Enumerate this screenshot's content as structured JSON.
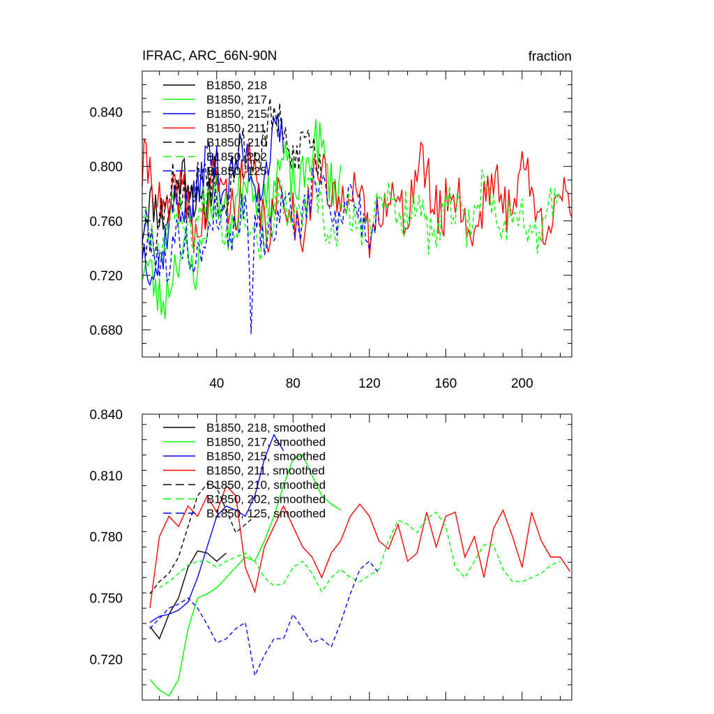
{
  "chart_data": [
    {
      "type": "line",
      "title": "IFRAC, ARC_66N-90N",
      "units": "fraction",
      "xlabel": "",
      "ylabel": "",
      "xlim": [
        1,
        226
      ],
      "ylim": [
        0.66,
        0.87
      ],
      "xticks": [
        40,
        80,
        120,
        160,
        200
      ],
      "yticks": [
        0.68,
        0.72,
        0.76,
        0.8,
        0.84
      ],
      "ytick_labels": [
        "0.680",
        "0.720",
        "0.760",
        "0.800",
        "0.840"
      ],
      "legend_position": "top-left",
      "series": [
        {
          "name": "B1850, 218",
          "color": "#000000",
          "dash": "solid",
          "n": 40,
          "base": 0.745,
          "trend": 0.045,
          "amp": 0.022,
          "phase": 0.3,
          "seed": 11,
          "dip": null
        },
        {
          "name": "B1850, 217",
          "color": "#00ff00",
          "dash": "solid",
          "n": 105,
          "base": 0.705,
          "trend": 0.09,
          "amp": 0.024,
          "phase": 1.1,
          "seed": 23,
          "dip": null
        },
        {
          "name": "B1850, 215",
          "color": "#0000ff",
          "dash": "solid",
          "n": 75,
          "base": 0.735,
          "trend": 0.07,
          "amp": 0.022,
          "phase": 2.0,
          "seed": 37,
          "dip": null
        },
        {
          "name": "B1850, 211",
          "color": "#ff0000",
          "dash": "solid",
          "n": 226,
          "base": 0.775,
          "trend": 0.0,
          "amp": 0.026,
          "phase": 0.7,
          "seed": 41,
          "dip": null
        },
        {
          "name": "B1850, 210",
          "color": "#000000",
          "dash": "dashed",
          "n": 95,
          "base": 0.755,
          "trend": 0.06,
          "amp": 0.022,
          "phase": 2.6,
          "seed": 53,
          "dip": null
        },
        {
          "name": "B1850, 202",
          "color": "#00ff00",
          "dash": "dashed",
          "n": 220,
          "base": 0.76,
          "trend": 0.005,
          "amp": 0.02,
          "phase": 1.7,
          "seed": 67,
          "dip": null
        },
        {
          "name": "B1850, 125",
          "color": "#0000ff",
          "dash": "dashed",
          "n": 125,
          "base": 0.735,
          "trend": 0.035,
          "amp": 0.02,
          "phase": 0.9,
          "seed": 79,
          "dip": [
            58,
            0.677
          ]
        }
      ]
    },
    {
      "type": "line",
      "title": "",
      "xlabel": "",
      "ylabel": "",
      "xlim": [
        1,
        226
      ],
      "ylim": [
        0.7,
        0.84
      ],
      "xticks": [
        40,
        80,
        120,
        160,
        200
      ],
      "yticks": [
        0.72,
        0.75,
        0.78,
        0.81,
        0.84
      ],
      "ytick_labels": [
        "0.720",
        "0.750",
        "0.780",
        "0.810",
        "0.840"
      ],
      "legend_position": "top-left",
      "series": [
        {
          "name": "B1850, 218, smoothed",
          "color": "#000000",
          "dash": "solid",
          "points": [
            [
              5,
              0.736
            ],
            [
              10,
              0.73
            ],
            [
              15,
              0.742
            ],
            [
              20,
              0.75
            ],
            [
              25,
              0.765
            ],
            [
              30,
              0.773
            ],
            [
              35,
              0.772
            ],
            [
              40,
              0.768
            ],
            [
              45,
              0.772
            ]
          ]
        },
        {
          "name": "B1850, 217, smoothed",
          "color": "#00ff00",
          "dash": "solid",
          "points": [
            [
              5,
              0.71
            ],
            [
              10,
              0.705
            ],
            [
              15,
              0.702
            ],
            [
              20,
              0.71
            ],
            [
              25,
              0.735
            ],
            [
              30,
              0.75
            ],
            [
              35,
              0.752
            ],
            [
              40,
              0.755
            ],
            [
              45,
              0.76
            ],
            [
              50,
              0.765
            ],
            [
              55,
              0.77
            ],
            [
              60,
              0.768
            ],
            [
              65,
              0.778
            ],
            [
              70,
              0.79
            ],
            [
              75,
              0.805
            ],
            [
              80,
              0.818
            ],
            [
              85,
              0.82
            ],
            [
              90,
              0.81
            ],
            [
              95,
              0.8
            ],
            [
              100,
              0.796
            ],
            [
              105,
              0.793
            ]
          ]
        },
        {
          "name": "B1850, 215, smoothed",
          "color": "#0000ff",
          "dash": "solid",
          "points": [
            [
              5,
              0.738
            ],
            [
              10,
              0.741
            ],
            [
              15,
              0.742
            ],
            [
              20,
              0.744
            ],
            [
              25,
              0.748
            ],
            [
              30,
              0.76
            ],
            [
              35,
              0.775
            ],
            [
              40,
              0.79
            ],
            [
              45,
              0.795
            ],
            [
              50,
              0.793
            ],
            [
              55,
              0.79
            ],
            [
              60,
              0.8
            ],
            [
              65,
              0.818
            ],
            [
              70,
              0.83
            ],
            [
              75,
              0.822
            ]
          ]
        },
        {
          "name": "B1850, 211, smoothed",
          "color": "#ff0000",
          "dash": "solid",
          "points": [
            [
              5,
              0.745
            ],
            [
              10,
              0.78
            ],
            [
              15,
              0.79
            ],
            [
              20,
              0.785
            ],
            [
              25,
              0.795
            ],
            [
              30,
              0.79
            ],
            [
              35,
              0.8
            ],
            [
              40,
              0.792
            ],
            [
              45,
              0.805
            ],
            [
              50,
              0.8
            ],
            [
              55,
              0.765
            ],
            [
              60,
              0.753
            ],
            [
              65,
              0.775
            ],
            [
              70,
              0.785
            ],
            [
              75,
              0.795
            ],
            [
              80,
              0.785
            ],
            [
              85,
              0.775
            ],
            [
              90,
              0.77
            ],
            [
              95,
              0.76
            ],
            [
              100,
              0.772
            ],
            [
              105,
              0.778
            ],
            [
              110,
              0.79
            ],
            [
              115,
              0.796
            ],
            [
              120,
              0.79
            ],
            [
              125,
              0.778
            ],
            [
              130,
              0.774
            ],
            [
              135,
              0.786
            ],
            [
              140,
              0.768
            ],
            [
              145,
              0.772
            ],
            [
              150,
              0.792
            ],
            [
              155,
              0.775
            ],
            [
              160,
              0.79
            ],
            [
              165,
              0.792
            ],
            [
              170,
              0.77
            ],
            [
              175,
              0.78
            ],
            [
              180,
              0.76
            ],
            [
              185,
              0.784
            ],
            [
              190,
              0.793
            ],
            [
              195,
              0.78
            ],
            [
              200,
              0.765
            ],
            [
              205,
              0.792
            ],
            [
              210,
              0.778
            ],
            [
              215,
              0.77
            ],
            [
              220,
              0.77
            ],
            [
              225,
              0.763
            ]
          ]
        },
        {
          "name": "B1850, 210, smoothed",
          "color": "#000000",
          "dash": "dashed",
          "points": [
            [
              5,
              0.752
            ],
            [
              10,
              0.758
            ],
            [
              15,
              0.762
            ],
            [
              20,
              0.77
            ],
            [
              25,
              0.785
            ],
            [
              30,
              0.8
            ],
            [
              35,
              0.806
            ],
            [
              40,
              0.804
            ],
            [
              45,
              0.793
            ],
            [
              50,
              0.782
            ],
            [
              55,
              0.786
            ],
            [
              60,
              0.79
            ]
          ]
        },
        {
          "name": "B1850, 202, smoothed",
          "color": "#00ff00",
          "dash": "dashed",
          "points": [
            [
              10,
              0.755
            ],
            [
              15,
              0.758
            ],
            [
              20,
              0.762
            ],
            [
              25,
              0.766
            ],
            [
              30,
              0.768
            ],
            [
              35,
              0.768
            ],
            [
              40,
              0.765
            ],
            [
              45,
              0.768
            ],
            [
              50,
              0.77
            ],
            [
              55,
              0.772
            ],
            [
              60,
              0.768
            ],
            [
              65,
              0.76
            ],
            [
              70,
              0.756
            ],
            [
              75,
              0.757
            ],
            [
              80,
              0.765
            ],
            [
              85,
              0.768
            ],
            [
              90,
              0.762
            ],
            [
              95,
              0.753
            ],
            [
              100,
              0.76
            ],
            [
              105,
              0.764
            ],
            [
              110,
              0.76
            ],
            [
              115,
              0.758
            ],
            [
              120,
              0.761
            ],
            [
              125,
              0.764
            ],
            [
              130,
              0.778
            ],
            [
              135,
              0.788
            ],
            [
              140,
              0.786
            ],
            [
              145,
              0.782
            ],
            [
              150,
              0.789
            ],
            [
              155,
              0.792
            ],
            [
              160,
              0.785
            ],
            [
              165,
              0.765
            ],
            [
              170,
              0.76
            ],
            [
              175,
              0.768
            ],
            [
              180,
              0.776
            ],
            [
              185,
              0.776
            ],
            [
              190,
              0.764
            ],
            [
              195,
              0.758
            ],
            [
              200,
              0.758
            ],
            [
              205,
              0.76
            ],
            [
              210,
              0.762
            ],
            [
              215,
              0.766
            ],
            [
              220,
              0.768
            ]
          ]
        },
        {
          "name": "B1850, 125, smoothed",
          "color": "#0000ff",
          "dash": "dashed",
          "points": [
            [
              5,
              0.735
            ],
            [
              10,
              0.74
            ],
            [
              15,
              0.745
            ],
            [
              20,
              0.747
            ],
            [
              25,
              0.75
            ],
            [
              30,
              0.745
            ],
            [
              35,
              0.737
            ],
            [
              40,
              0.728
            ],
            [
              45,
              0.73
            ],
            [
              50,
              0.735
            ],
            [
              55,
              0.738
            ],
            [
              60,
              0.712
            ],
            [
              65,
              0.722
            ],
            [
              70,
              0.73
            ],
            [
              75,
              0.73
            ],
            [
              80,
              0.742
            ],
            [
              85,
              0.735
            ],
            [
              90,
              0.728
            ],
            [
              95,
              0.73
            ],
            [
              100,
              0.726
            ],
            [
              105,
              0.738
            ],
            [
              110,
              0.752
            ],
            [
              115,
              0.764
            ],
            [
              120,
              0.768
            ],
            [
              125,
              0.762
            ]
          ]
        }
      ]
    }
  ]
}
